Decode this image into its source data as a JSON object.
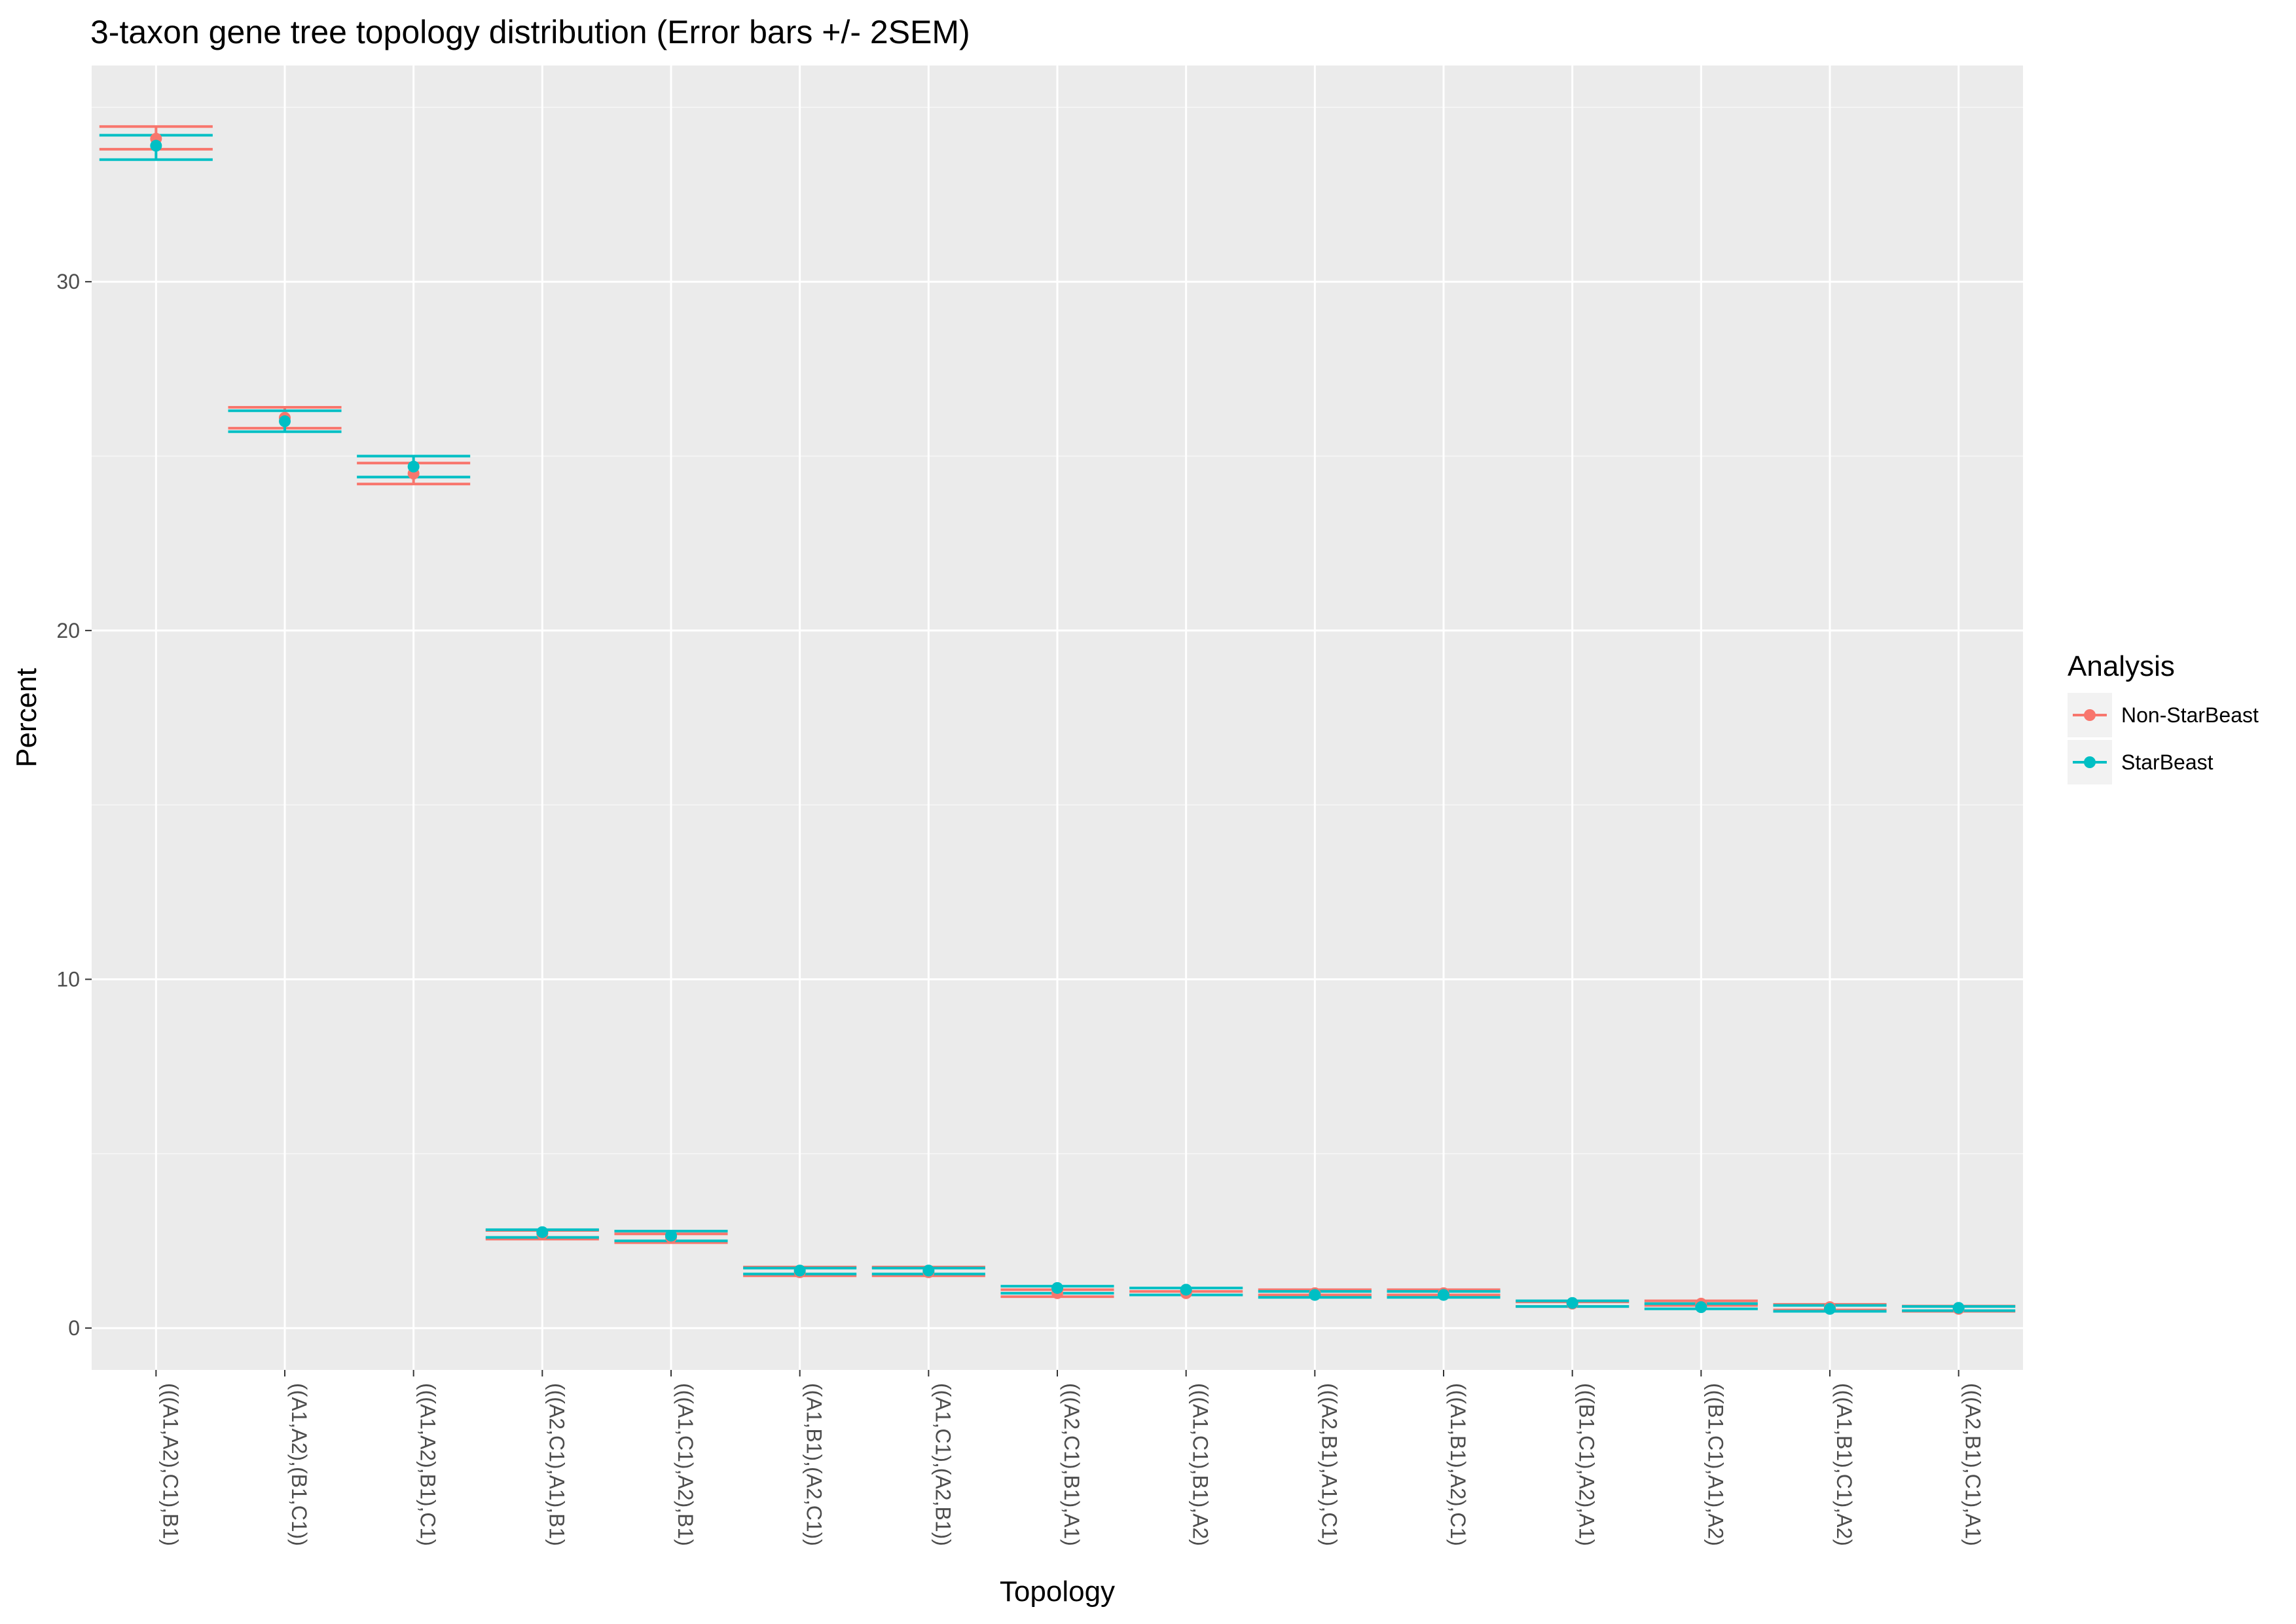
{
  "chart_data": {
    "type": "scatter",
    "title": "3-taxon gene tree topology distribution (Error bars +/- 2SEM)",
    "xlabel": "Topology",
    "ylabel": "Percent",
    "ylim": [
      -1.2,
      36.2
    ],
    "yticks": [
      0,
      10,
      20,
      30
    ],
    "grid": true,
    "legend": {
      "title": "Analysis",
      "position": "right"
    },
    "categories": [
      "(((A1,A2),C1),B1)",
      "((A1,A2),(B1,C1))",
      "(((A1,A2),B1),C1)",
      "(((A2,C1),A1),B1)",
      "(((A1,C1),A2),B1)",
      "((A1,B1),(A2,C1))",
      "((A1,C1),(A2,B1))",
      "(((A2,C1),B1),A1)",
      "(((A1,C1),B1),A2)",
      "(((A2,B1),A1),C1)",
      "(((A1,B1),A2),C1)",
      "(((B1,C1),A2),A1)",
      "(((B1,C1),A1),A2)",
      "(((A1,B1),C1),A2)",
      "(((A2,B1),C1),A1)"
    ],
    "series": [
      {
        "name": "Non-StarBeast",
        "color": "#F8766D",
        "values": [
          34.1,
          26.1,
          24.5,
          2.7,
          2.6,
          1.6,
          1.6,
          1.0,
          1.0,
          1.0,
          1.0,
          0.7,
          0.7,
          0.6,
          0.55
        ],
        "lower": [
          33.8,
          25.8,
          24.2,
          2.55,
          2.45,
          1.5,
          1.5,
          0.9,
          0.95,
          0.95,
          0.95,
          0.62,
          0.65,
          0.52,
          0.48
        ],
        "upper": [
          34.45,
          26.4,
          24.8,
          2.8,
          2.7,
          1.75,
          1.75,
          1.1,
          1.05,
          1.1,
          1.1,
          0.75,
          0.78,
          0.68,
          0.63
        ]
      },
      {
        "name": "StarBeast",
        "color": "#00BFC4",
        "values": [
          33.9,
          26.0,
          24.7,
          2.75,
          2.65,
          1.65,
          1.65,
          1.15,
          1.1,
          0.95,
          0.95,
          0.72,
          0.6,
          0.55,
          0.58
        ],
        "lower": [
          33.5,
          25.7,
          24.4,
          2.6,
          2.5,
          1.55,
          1.55,
          1.0,
          0.95,
          0.88,
          0.88,
          0.62,
          0.55,
          0.48,
          0.5
        ],
        "upper": [
          34.2,
          26.3,
          25.0,
          2.82,
          2.78,
          1.72,
          1.72,
          1.2,
          1.15,
          1.05,
          1.05,
          0.78,
          0.7,
          0.65,
          0.62
        ]
      }
    ]
  }
}
